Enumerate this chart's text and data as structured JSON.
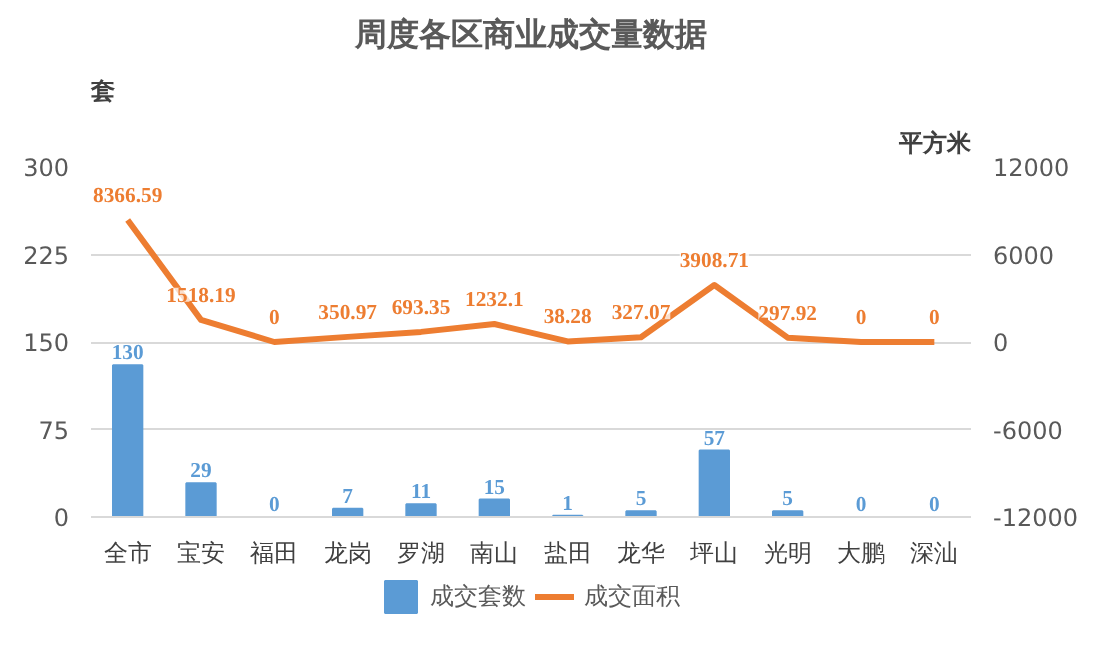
{
  "chart_data": {
    "type": "bar",
    "title": "周度各区商业成交量数据",
    "ylabel": "套",
    "y2label": "平方米",
    "categories": [
      "全市",
      "宝安",
      "福田",
      "龙岗",
      "罗湖",
      "南山",
      "盐田",
      "龙华",
      "坪山",
      "光明",
      "大鹏",
      "深汕"
    ],
    "series": [
      {
        "name": "成交套数",
        "color": "#5b9bd5",
        "values": [
          130,
          29,
          0,
          7,
          11,
          15,
          1,
          5,
          57,
          5,
          0,
          0
        ]
      },
      {
        "name": "成交面积",
        "type": "line",
        "axis": "y2",
        "color": "#ed7d31",
        "values": [
          8366.59,
          1518.19,
          0,
          350.97,
          693.35,
          1232.1,
          38.28,
          327.07,
          3908.71,
          297.92,
          0,
          0
        ]
      }
    ],
    "ylim": [
      0,
      300
    ],
    "yticks": [
      0,
      75,
      150,
      225,
      300
    ],
    "y2lim": [
      -12000,
      12000
    ],
    "y2ticks": [
      -12000,
      -6000,
      0,
      6000,
      12000
    ],
    "data_labels": true,
    "grid": "y",
    "legend": "bottom",
    "marker": "none",
    "line_style": "solid"
  }
}
